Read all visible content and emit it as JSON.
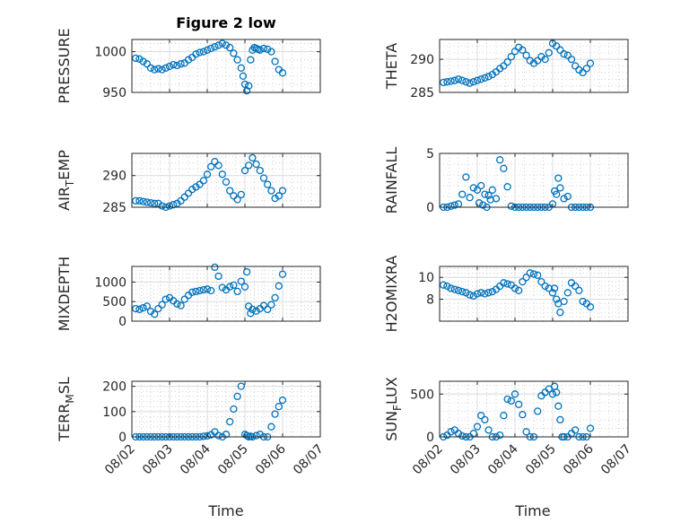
{
  "figure": {
    "title": "Figure 2 low"
  },
  "colors": {
    "marker": "#0072bd",
    "axis": "#262626"
  },
  "chart_data": [
    {
      "type": "scatter",
      "id": "pressure",
      "ylabel": "PRESSURE",
      "ylim": [
        950,
        1015
      ],
      "yticks": [
        950,
        1000
      ],
      "ytick_labels": [
        "950",
        "1000"
      ],
      "xlim": [
        0,
        5
      ],
      "grid": true,
      "x": [
        0.1,
        0.2,
        0.3,
        0.4,
        0.5,
        0.6,
        0.7,
        0.8,
        0.9,
        1.0,
        1.1,
        1.2,
        1.3,
        1.4,
        1.5,
        1.6,
        1.7,
        1.8,
        1.9,
        2.0,
        2.1,
        2.2,
        2.3,
        2.4,
        2.5,
        2.6,
        2.7,
        2.8,
        2.9,
        2.95,
        3.0,
        3.05,
        3.1,
        3.15,
        3.2,
        3.25,
        3.3,
        3.35,
        3.4,
        3.5,
        3.6,
        3.7,
        3.8,
        3.9,
        4.0
      ],
      "y": [
        992,
        991,
        988,
        985,
        980,
        978,
        979,
        978,
        980,
        982,
        984,
        983,
        985,
        986,
        990,
        993,
        997,
        999,
        1000,
        1002,
        1004,
        1006,
        1008,
        1010,
        1008,
        1005,
        998,
        990,
        980,
        970,
        960,
        952,
        958,
        990,
        1002,
        1005,
        1004,
        1003,
        1002,
        1004,
        1003,
        1000,
        988,
        978,
        974
      ]
    },
    {
      "type": "scatter",
      "id": "theta",
      "ylabel": "THETA",
      "ylim": [
        285,
        293
      ],
      "yticks": [
        285,
        290
      ],
      "ytick_labels": [
        "285",
        "290"
      ],
      "xlim": [
        0,
        5
      ],
      "grid": true,
      "x": [
        0.1,
        0.2,
        0.3,
        0.4,
        0.5,
        0.6,
        0.7,
        0.8,
        0.9,
        1.0,
        1.1,
        1.2,
        1.3,
        1.4,
        1.5,
        1.6,
        1.7,
        1.8,
        1.9,
        2.0,
        2.1,
        2.2,
        2.3,
        2.4,
        2.5,
        2.6,
        2.7,
        2.8,
        2.9,
        3.0,
        3.1,
        3.2,
        3.3,
        3.4,
        3.5,
        3.6,
        3.7,
        3.8,
        3.9,
        4.0
      ],
      "y": [
        286.5,
        286.6,
        286.7,
        286.8,
        287.0,
        286.8,
        286.6,
        286.4,
        286.6,
        286.8,
        287.0,
        287.2,
        287.4,
        287.7,
        288.1,
        288.6,
        289.0,
        289.6,
        290.4,
        291.2,
        291.8,
        291.4,
        290.6,
        289.8,
        289.4,
        289.8,
        290.4,
        290.0,
        291.0,
        292.4,
        292.0,
        291.4,
        290.8,
        290.6,
        290.0,
        289.0,
        288.4,
        288.0,
        288.6,
        289.4
      ]
    },
    {
      "type": "scatter",
      "id": "air-temp",
      "ylabel": "AIR_TEMP",
      "ylabel_parts": {
        "main": "AIR",
        "sub": "T",
        "rest": "EMP"
      },
      "ylim": [
        285,
        293.5
      ],
      "yticks": [
        285,
        290
      ],
      "ytick_labels": [
        "285",
        "290"
      ],
      "xlim": [
        0,
        5
      ],
      "grid": true,
      "x": [
        0.1,
        0.2,
        0.3,
        0.4,
        0.5,
        0.6,
        0.7,
        0.8,
        0.9,
        1.0,
        1.1,
        1.2,
        1.3,
        1.4,
        1.5,
        1.6,
        1.7,
        1.8,
        1.9,
        2.0,
        2.1,
        2.2,
        2.3,
        2.4,
        2.5,
        2.6,
        2.7,
        2.8,
        2.9,
        3.0,
        3.1,
        3.2,
        3.3,
        3.4,
        3.5,
        3.6,
        3.7,
        3.8,
        3.9,
        4.0
      ],
      "y": [
        286.0,
        286.0,
        285.9,
        285.8,
        285.7,
        285.6,
        285.6,
        285.2,
        285.0,
        285.2,
        285.4,
        285.6,
        286.0,
        286.6,
        287.2,
        287.8,
        288.2,
        288.6,
        289.2,
        290.2,
        291.4,
        292.2,
        291.6,
        290.2,
        289.0,
        287.6,
        286.8,
        286.2,
        287.0,
        290.8,
        291.6,
        292.8,
        291.8,
        290.8,
        289.6,
        288.6,
        287.6,
        286.4,
        286.8,
        287.6
      ]
    },
    {
      "type": "scatter",
      "id": "rainfall",
      "ylabel": "RAINFALL",
      "ylim": [
        0,
        5
      ],
      "yticks": [
        0,
        5
      ],
      "ytick_labels": [
        "0",
        "5"
      ],
      "xlim": [
        0,
        5
      ],
      "grid": true,
      "x": [
        0.1,
        0.2,
        0.3,
        0.4,
        0.5,
        0.6,
        0.7,
        0.8,
        0.9,
        1.0,
        1.05,
        1.1,
        1.15,
        1.2,
        1.25,
        1.3,
        1.35,
        1.4,
        1.5,
        1.6,
        1.7,
        1.8,
        1.9,
        2.0,
        2.1,
        2.2,
        2.3,
        2.4,
        2.5,
        2.6,
        2.7,
        2.8,
        2.9,
        3.0,
        3.05,
        3.1,
        3.15,
        3.2,
        3.3,
        3.4,
        3.5,
        3.6,
        3.7,
        3.8,
        3.9,
        4.0
      ],
      "y": [
        0,
        0,
        0.1,
        0.2,
        0.3,
        1.2,
        2.8,
        0.9,
        1.8,
        1.6,
        0.4,
        2.0,
        0.2,
        1.2,
        0,
        1.1,
        0.7,
        1.6,
        0.8,
        4.4,
        3.6,
        1.9,
        0.1,
        0,
        0,
        0,
        0,
        0,
        0,
        0,
        0,
        0,
        0,
        0.3,
        1.5,
        1.2,
        2.7,
        1.8,
        0.8,
        1.0,
        0,
        0,
        0,
        0,
        0,
        0
      ]
    },
    {
      "type": "scatter",
      "id": "mixdepth",
      "ylabel": "MIXDEPTH",
      "ylim": [
        0,
        1400
      ],
      "yticks": [
        0,
        500,
        1000
      ],
      "ytick_labels": [
        "0",
        "500",
        "1000"
      ],
      "xlim": [
        0,
        5
      ],
      "grid": true,
      "x": [
        0.1,
        0.2,
        0.3,
        0.4,
        0.5,
        0.6,
        0.7,
        0.8,
        0.9,
        1.0,
        1.1,
        1.2,
        1.3,
        1.4,
        1.5,
        1.6,
        1.7,
        1.8,
        1.9,
        2.0,
        2.1,
        2.2,
        2.3,
        2.4,
        2.5,
        2.6,
        2.7,
        2.8,
        2.9,
        3.0,
        3.05,
        3.1,
        3.15,
        3.2,
        3.3,
        3.4,
        3.5,
        3.6,
        3.7,
        3.8,
        3.9,
        4.0
      ],
      "y": [
        320,
        300,
        340,
        380,
        250,
        180,
        320,
        420,
        560,
        600,
        520,
        440,
        400,
        560,
        660,
        740,
        760,
        780,
        800,
        820,
        780,
        1380,
        1150,
        860,
        800,
        880,
        920,
        760,
        1020,
        880,
        1260,
        380,
        200,
        300,
        260,
        320,
        400,
        300,
        420,
        600,
        900,
        1200
      ]
    },
    {
      "type": "scatter",
      "id": "h2omixra",
      "ylabel": "H2OMIXRA",
      "ylim": [
        6,
        11
      ],
      "yticks": [
        8,
        10
      ],
      "ytick_labels": [
        "8",
        "10"
      ],
      "xlim": [
        0,
        5
      ],
      "grid": true,
      "x": [
        0.1,
        0.2,
        0.3,
        0.4,
        0.5,
        0.6,
        0.7,
        0.8,
        0.9,
        1.0,
        1.1,
        1.2,
        1.3,
        1.4,
        1.5,
        1.6,
        1.7,
        1.8,
        1.9,
        2.0,
        2.1,
        2.2,
        2.3,
        2.4,
        2.5,
        2.6,
        2.7,
        2.8,
        2.9,
        3.0,
        3.05,
        3.1,
        3.15,
        3.2,
        3.3,
        3.4,
        3.5,
        3.6,
        3.7,
        3.8,
        3.9,
        4.0
      ],
      "y": [
        9.3,
        9.2,
        9.0,
        8.9,
        8.8,
        8.7,
        8.6,
        8.4,
        8.3,
        8.5,
        8.6,
        8.5,
        8.6,
        8.7,
        8.9,
        9.2,
        9.5,
        9.4,
        9.3,
        9.0,
        8.8,
        9.6,
        10.0,
        10.4,
        10.3,
        10.2,
        9.6,
        9.2,
        9.0,
        8.6,
        9.0,
        8.0,
        7.6,
        6.8,
        7.8,
        8.6,
        9.5,
        9.2,
        8.8,
        7.8,
        7.6,
        7.3
      ]
    },
    {
      "type": "scatter",
      "id": "terr-msl",
      "ylabel": "TERR_MSL",
      "ylabel_parts": {
        "main": "TERR",
        "sub": "M",
        "rest": "SL"
      },
      "ylim": [
        0,
        220
      ],
      "yticks": [
        0,
        100,
        200
      ],
      "ytick_labels": [
        "0",
        "100",
        "200"
      ],
      "xlim": [
        0,
        5
      ],
      "grid": true,
      "x": [
        0.1,
        0.2,
        0.3,
        0.4,
        0.5,
        0.6,
        0.7,
        0.8,
        0.9,
        1.0,
        1.1,
        1.2,
        1.3,
        1.4,
        1.5,
        1.6,
        1.7,
        1.8,
        1.9,
        2.0,
        2.1,
        2.2,
        2.3,
        2.4,
        2.5,
        2.6,
        2.7,
        2.8,
        2.9,
        3.0,
        3.05,
        3.1,
        3.15,
        3.2,
        3.3,
        3.4,
        3.5,
        3.6,
        3.7,
        3.8,
        3.9,
        4.0
      ],
      "y": [
        0,
        0,
        0,
        0,
        0,
        0,
        0,
        0,
        0,
        0,
        0,
        0,
        0,
        0,
        0,
        0,
        0,
        0,
        2,
        4,
        8,
        20,
        5,
        0,
        10,
        60,
        110,
        160,
        200,
        10,
        5,
        0,
        2,
        0,
        5,
        10,
        0,
        0,
        40,
        90,
        120,
        145
      ]
    },
    {
      "type": "scatter",
      "id": "sun-flux",
      "ylabel": "SUN_FLUX",
      "ylabel_parts": {
        "main": "SUN",
        "sub": "F",
        "rest": "LUX"
      },
      "ylim": [
        0,
        650
      ],
      "yticks": [
        0,
        500
      ],
      "ytick_labels": [
        "0",
        "500"
      ],
      "xlim": [
        0,
        5
      ],
      "grid": true,
      "x": [
        0.1,
        0.2,
        0.3,
        0.4,
        0.5,
        0.6,
        0.7,
        0.8,
        0.9,
        1.0,
        1.1,
        1.2,
        1.3,
        1.4,
        1.5,
        1.6,
        1.7,
        1.8,
        1.9,
        2.0,
        2.1,
        2.2,
        2.3,
        2.4,
        2.5,
        2.6,
        2.7,
        2.8,
        2.9,
        3.0,
        3.05,
        3.1,
        3.15,
        3.2,
        3.25,
        3.3,
        3.4,
        3.5,
        3.6,
        3.7,
        3.8,
        3.9,
        4.0
      ],
      "y": [
        0,
        20,
        60,
        80,
        40,
        10,
        0,
        0,
        40,
        120,
        250,
        200,
        80,
        0,
        0,
        20,
        250,
        440,
        420,
        500,
        380,
        260,
        60,
        0,
        0,
        300,
        480,
        520,
        560,
        500,
        590,
        520,
        360,
        200,
        0,
        0,
        0,
        40,
        80,
        0,
        0,
        0,
        100
      ]
    }
  ],
  "x_axis": {
    "label": "Time",
    "ticks": [
      0,
      1,
      2,
      3,
      4,
      5
    ],
    "tick_labels": [
      "08/02",
      "08/03",
      "08/04",
      "08/05",
      "08/06",
      "08/07"
    ]
  }
}
